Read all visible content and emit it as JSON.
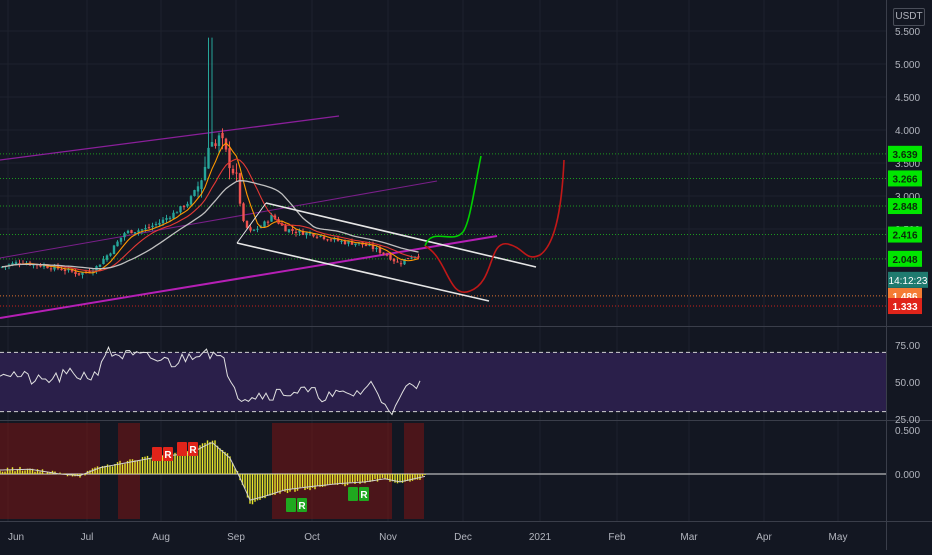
{
  "currency_label": "USDT",
  "colors": {
    "background": "#131722",
    "grid": "#1e222d",
    "up": "#26a69a",
    "down": "#ef5350",
    "text": "#b2b5be",
    "rsi_band": "#2a1f4a",
    "oscillator_bar": "#e8e82a",
    "price_tag_green": "#00e600",
    "price_tag_red": "#e0241a",
    "price_tag_orange": "#f57c33",
    "timer_tag": "#1f7a6f",
    "forecast_green": "#00d000",
    "forecast_red": "#c01818",
    "channel": "#e6e6e6",
    "trendline_magenta": "#b51fb5"
  },
  "chart_data": [
    {
      "type": "candlestick",
      "name": "price",
      "ylim": [
        1.3,
        5.5
      ],
      "y_ticks": [
        {
          "value": 5.5,
          "label": "5.500"
        },
        {
          "value": 5.0,
          "label": "5.000"
        },
        {
          "value": 4.5,
          "label": "4.500"
        },
        {
          "value": 4.0,
          "label": "4.000"
        },
        {
          "value": 3.5,
          "label": "3.500"
        },
        {
          "value": 3.0,
          "label": "3.000"
        },
        {
          "value": 2.5,
          "label": "2.500"
        }
      ],
      "x_ticks": [
        "Jun",
        "Jul",
        "Aug",
        "Sep",
        "Oct",
        "Nov",
        "Dec",
        "2021",
        "Feb",
        "Mar",
        "Apr",
        "May"
      ],
      "candles_ohlc_by_month": [
        {
          "month": "Jun",
          "approx_range": [
            1.7,
            2.1
          ]
        },
        {
          "month": "Jul",
          "approx_range": [
            1.75,
            2.6
          ]
        },
        {
          "month": "Aug",
          "approx_range": [
            2.3,
            5.4
          ]
        },
        {
          "month": "Sep",
          "approx_range": [
            2.3,
            3.9
          ]
        },
        {
          "month": "Oct",
          "approx_range": [
            2.1,
            2.9
          ]
        },
        {
          "month": "Nov",
          "approx_range": [
            1.95,
            2.25
          ]
        }
      ],
      "horizontal_levels": [
        {
          "value": 3.639,
          "label": "3.639",
          "tag": "green",
          "line": "green"
        },
        {
          "value": 3.266,
          "label": "3.266",
          "tag": "green",
          "line": "green"
        },
        {
          "value": 2.848,
          "label": "2.848",
          "tag": "green",
          "line": "green"
        },
        {
          "value": 2.416,
          "label": "2.416",
          "tag": "green",
          "line": "green"
        },
        {
          "value": 2.048,
          "label": "2.048",
          "tag": "green",
          "line": "green"
        },
        {
          "value": 1.486,
          "label": "1.486",
          "tag": "orange",
          "line": "orange"
        },
        {
          "value": 1.333,
          "label": "1.333",
          "tag": "red",
          "line": "red"
        }
      ],
      "countdown_label": "14:12:23",
      "annotations": [
        "descending channel",
        "rising magenta trendlines",
        "green bullish forecast path",
        "red bearish forecast path"
      ]
    },
    {
      "type": "line",
      "name": "RSI",
      "ylim": [
        25,
        80
      ],
      "y_ticks": [
        {
          "value": 75,
          "label": "75.00"
        },
        {
          "value": 50,
          "label": "50.00"
        },
        {
          "value": 25,
          "label": "25.00"
        }
      ],
      "band": [
        30,
        70
      ],
      "approx_values_by_month": [
        {
          "month": "Jun",
          "value": 58
        },
        {
          "month": "Jul",
          "value": 55
        },
        {
          "month": "Aug",
          "value": 68
        },
        {
          "month": "Sep",
          "value": 40
        },
        {
          "month": "Oct",
          "value": 42
        },
        {
          "month": "Nov",
          "value": 47
        }
      ]
    },
    {
      "type": "bar",
      "name": "oscillator",
      "ylim": [
        -0.55,
        0.55
      ],
      "y_ticks": [
        {
          "value": 0.5,
          "label": "0.500"
        },
        {
          "value": 0.0,
          "label": "0.000"
        }
      ],
      "signal_markers": [
        {
          "kind": "bear",
          "text": "R"
        },
        {
          "kind": "bear",
          "text": "R"
        },
        {
          "kind": "bull",
          "text": "R"
        },
        {
          "kind": "bull",
          "text": "R"
        }
      ]
    }
  ]
}
